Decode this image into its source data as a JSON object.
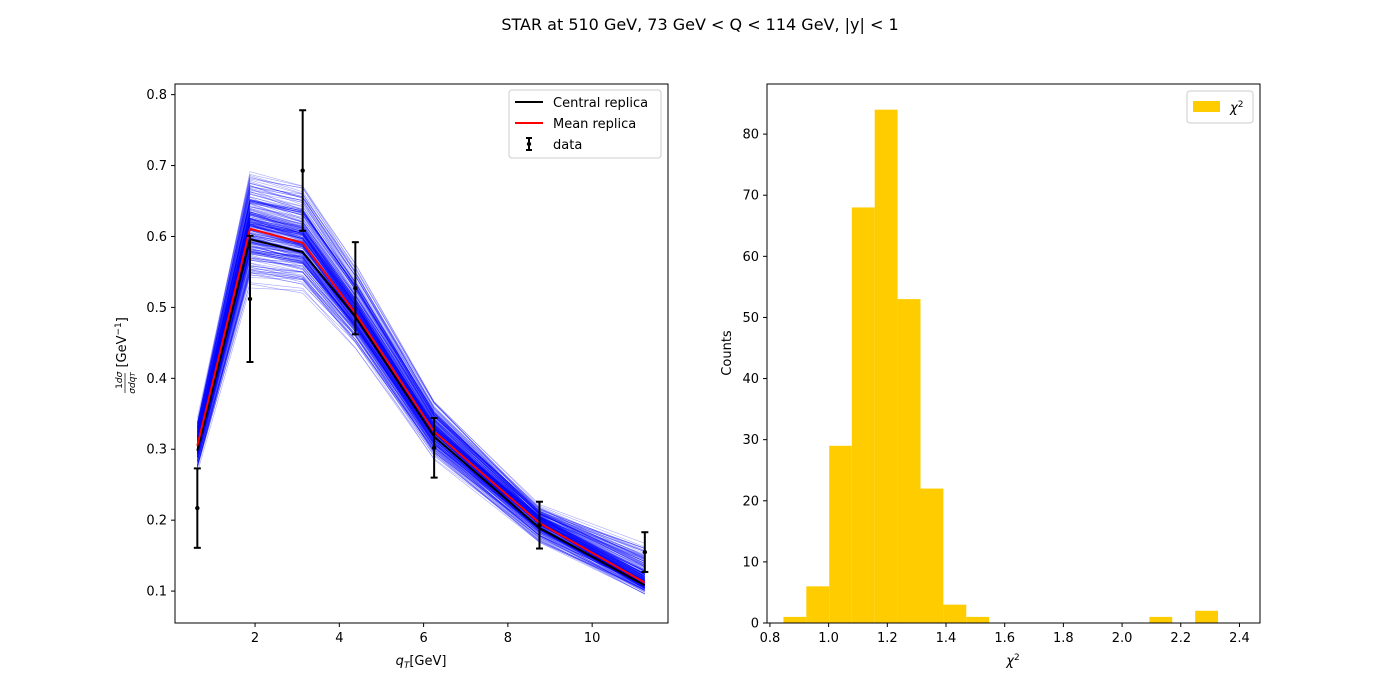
{
  "title": "STAR at 510 GeV, 73 GeV < Q < 114 GeV, |y| < 1",
  "colors": {
    "replica": "#0000ff",
    "central": "#000000",
    "mean": "#ff0000",
    "data": "#000000",
    "histogram": "#ffcc00"
  },
  "chart_data": [
    {
      "type": "line",
      "xlabel": "q_T[GeV]",
      "ylabel": "1/σ dσ/dq_T [GeV⁻¹]",
      "xlim": [
        0.1,
        11.8
      ],
      "ylim": [
        0.055,
        0.815
      ],
      "xticks": [
        2,
        4,
        6,
        8,
        10
      ],
      "yticks": [
        0.1,
        0.2,
        0.3,
        0.4,
        0.5,
        0.6,
        0.7,
        0.8
      ],
      "x": [
        0.63,
        1.88,
        3.13,
        4.38,
        6.25,
        8.75,
        11.25
      ],
      "legend": {
        "position": "top-right",
        "entries": [
          "Central replica",
          "Mean replica",
          "data"
        ]
      },
      "series": [
        {
          "name": "Central replica",
          "values": [
            0.298,
            0.596,
            0.578,
            0.487,
            0.318,
            0.189,
            0.108
          ]
        },
        {
          "name": "Mean replica",
          "values": [
            0.305,
            0.611,
            0.591,
            0.492,
            0.325,
            0.196,
            0.112
          ]
        }
      ],
      "data": {
        "name": "data",
        "values": [
          0.217,
          0.512,
          0.693,
          0.527,
          0.302,
          0.193,
          0.155
        ],
        "errors": [
          0.056,
          0.089,
          0.085,
          0.065,
          0.042,
          0.033,
          0.028
        ]
      },
      "replica_band": {
        "count": 250,
        "low": [
          0.245,
          0.475,
          0.48,
          0.415,
          0.265,
          0.15,
          0.088
        ],
        "high": [
          0.365,
          0.75,
          0.73,
          0.61,
          0.4,
          0.235,
          0.205
        ]
      }
    },
    {
      "type": "bar",
      "xlabel": "χ²",
      "ylabel": "Counts",
      "xlim": [
        0.79,
        2.47
      ],
      "ylim": [
        0,
        88.2
      ],
      "xticks": [
        0.8,
        1.0,
        1.2,
        1.4,
        1.6,
        1.8,
        2.0,
        2.2,
        2.4
      ],
      "yticks": [
        0,
        10,
        20,
        30,
        40,
        50,
        60,
        70,
        80
      ],
      "bin_edges": [
        0.846,
        0.924,
        1.002,
        1.079,
        1.157,
        1.235,
        1.313,
        1.391,
        1.469,
        1.547,
        1.625,
        1.703,
        1.781,
        1.859,
        1.937,
        2.015,
        2.093,
        2.171,
        2.249,
        2.327,
        2.404
      ],
      "values": [
        1,
        6,
        29,
        68,
        84,
        53,
        22,
        3,
        1,
        0,
        0,
        0,
        0,
        0,
        0,
        0,
        1,
        0,
        2,
        0
      ],
      "legend": {
        "position": "top-right",
        "entries": [
          "χ²"
        ]
      }
    }
  ]
}
